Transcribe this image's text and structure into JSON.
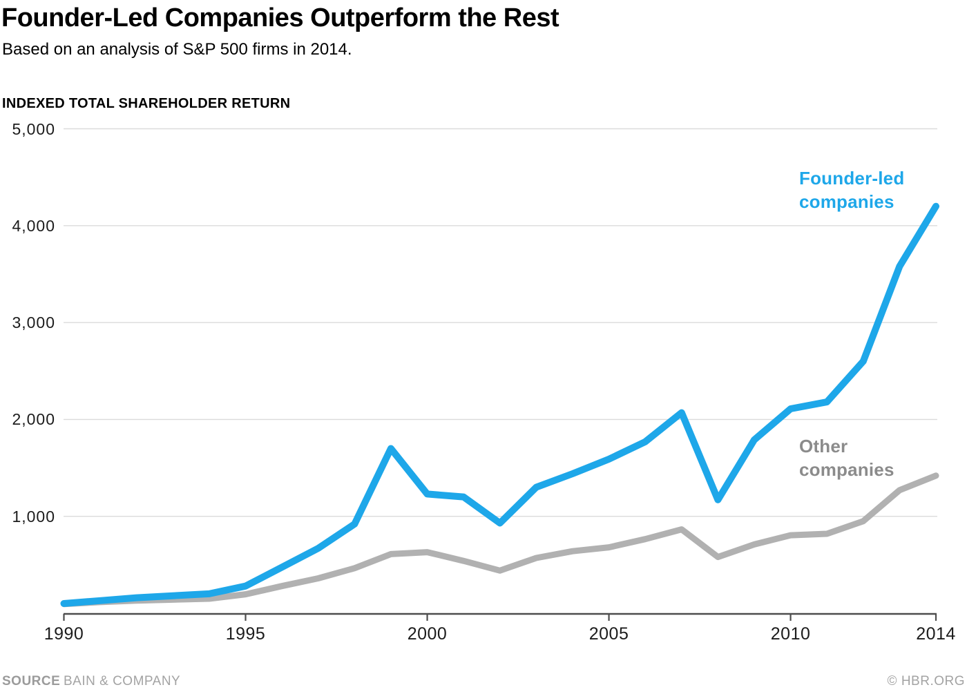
{
  "header": {
    "title": "Founder-Led Companies Outperform the Rest",
    "subtitle": "Based on an analysis of S&P 500 firms in 2014."
  },
  "chart_data": {
    "type": "line",
    "title": "Founder-Led Companies Outperform the Rest",
    "subtitle": "Based on an analysis of S&P 500 firms in 2014.",
    "ylabel": "INDEXED TOTAL SHAREHOLDER RETURN",
    "xlabel": "",
    "x": [
      1990,
      1991,
      1992,
      1993,
      1994,
      1995,
      1996,
      1997,
      1998,
      1999,
      2000,
      2001,
      2002,
      2003,
      2004,
      2005,
      2006,
      2007,
      2008,
      2009,
      2010,
      2011,
      2012,
      2013,
      2014
    ],
    "series": [
      {
        "name": "Founder-led companies",
        "legend_label": "Founder-led\ncompanies",
        "color": "#1EA7E9",
        "legend_color": "#1EA7E9",
        "values": [
          100,
          130,
          160,
          180,
          200,
          280,
          475,
          670,
          920,
          1700,
          1230,
          1200,
          930,
          1300,
          1440,
          1590,
          1770,
          2070,
          1170,
          1790,
          2110,
          2180,
          2600,
          3580,
          4200
        ]
      },
      {
        "name": "Other companies",
        "legend_label": "Other\ncompanies",
        "color": "#B1B1B1",
        "legend_color": "#8B8B8B",
        "values": [
          95,
          115,
          130,
          140,
          150,
          195,
          280,
          360,
          465,
          610,
          630,
          540,
          440,
          570,
          640,
          680,
          765,
          865,
          580,
          710,
          805,
          820,
          950,
          1270,
          1420
        ]
      }
    ],
    "xlim": [
      1990,
      2014
    ],
    "ylim": [
      0,
      5000
    ],
    "x_ticks": [
      1990,
      1995,
      2000,
      2005,
      2010,
      2014
    ],
    "x_tick_labels": [
      "1990",
      "1995",
      "2000",
      "2005",
      "2010",
      "2014"
    ],
    "y_ticks": [
      1000,
      2000,
      3000,
      4000,
      5000
    ],
    "y_tick_labels": [
      "1,000",
      "2,000",
      "3,000",
      "4,000",
      "5,000"
    ],
    "grid": "horizontal-only",
    "legend_position": "right-inline",
    "colors": {
      "gridline": "#DBDBDB",
      "axis": "#4D4D4D",
      "tick_label": "#1c1c1c"
    }
  },
  "footer": {
    "source_label": "SOURCE",
    "source_value": "BAIN & COMPANY",
    "credit": "© HBR.ORG"
  }
}
